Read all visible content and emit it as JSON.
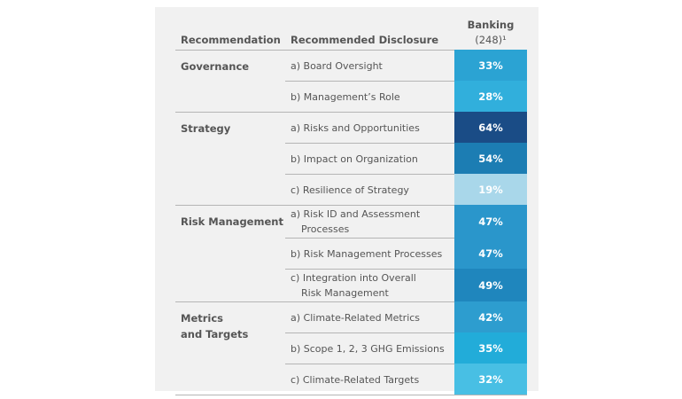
{
  "header": {
    "recommendation": "Recommendation",
    "disclosure": "Recommended Disclosure",
    "column": "Banking",
    "count": "(248)¹"
  },
  "groups": [
    {
      "name": [
        "Governance"
      ],
      "rows": [
        {
          "disclosure": [
            "a) Board Oversight"
          ],
          "value": "33%",
          "color": "#2ba3d3"
        },
        {
          "disclosure": [
            "b) Management’s Role"
          ],
          "value": "28%",
          "color": "#31afdc"
        }
      ]
    },
    {
      "name": [
        "Strategy"
      ],
      "rows": [
        {
          "disclosure": [
            "a) Risks and Opportunities"
          ],
          "value": "64%",
          "color": "#1a4c86"
        },
        {
          "disclosure": [
            "b) Impact on Organization"
          ],
          "value": "54%",
          "color": "#1c7db3"
        },
        {
          "disclosure": [
            "c) Resilience of Strategy"
          ],
          "value": "19%",
          "color": "#a9d7ea"
        }
      ]
    },
    {
      "name": [
        "Risk Management"
      ],
      "rows": [
        {
          "disclosure": [
            "a) Risk ID and Assessment",
            "Processes"
          ],
          "value": "47%",
          "color": "#2a96cb"
        },
        {
          "disclosure": [
            "b) Risk Management Processes"
          ],
          "value": "47%",
          "color": "#2a96cb"
        },
        {
          "disclosure": [
            "c) Integration into Overall",
            "Risk Management"
          ],
          "value": "49%",
          "color": "#1f86bd"
        }
      ]
    },
    {
      "name": [
        "Metrics",
        "and Targets"
      ],
      "rows": [
        {
          "disclosure": [
            "a) Climate-Related Metrics"
          ],
          "value": "42%",
          "color": "#2d9dcf"
        },
        {
          "disclosure": [
            "b) Scope 1, 2, 3 GHG Emissions"
          ],
          "value": "35%",
          "color": "#22acd9"
        },
        {
          "disclosure": [
            "c) Climate-Related Targets"
          ],
          "value": "32%",
          "color": "#48bfe4"
        }
      ]
    }
  ]
}
